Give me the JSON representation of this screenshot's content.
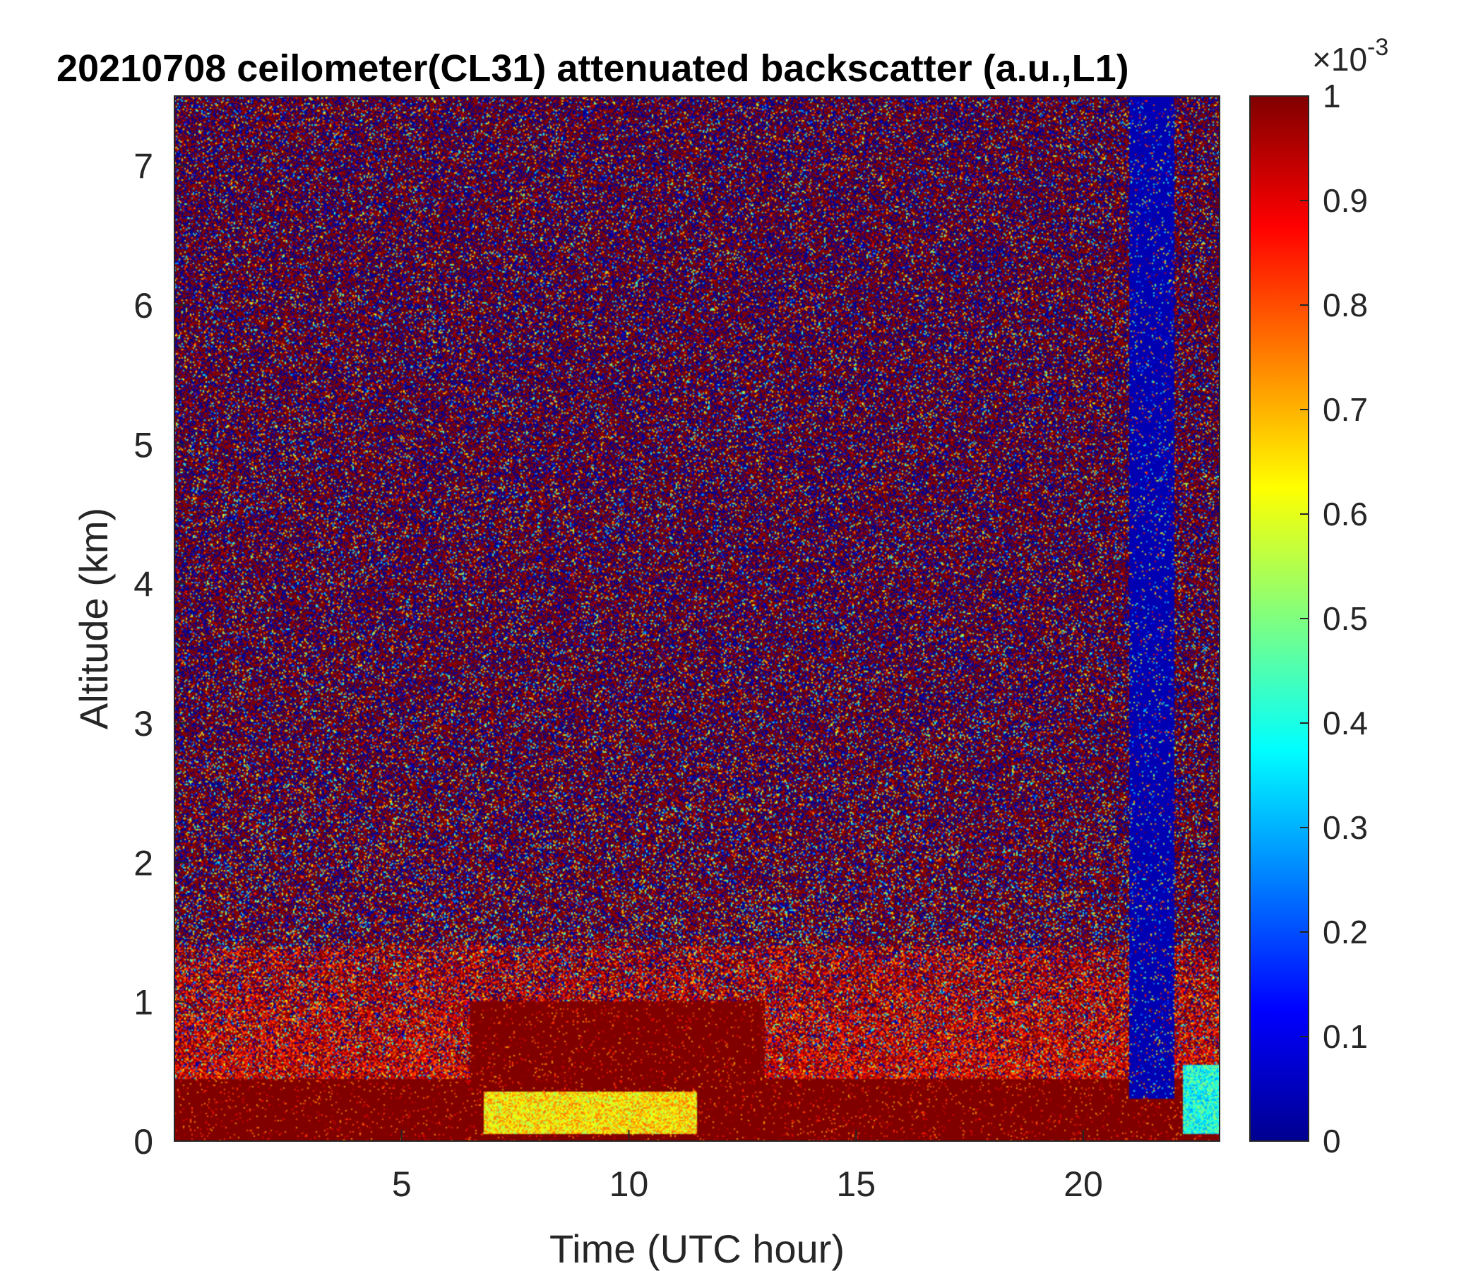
{
  "chart_data": {
    "type": "heatmap",
    "title": "20210708 ceilometer(CL31) attenuated backscatter (a.u.,L1)",
    "xlabel": "Time (UTC hour)",
    "ylabel": "Altitude (km)",
    "xlim": [
      0,
      23
    ],
    "ylim": [
      0,
      7.5
    ],
    "xticks": [
      5,
      10,
      15,
      20
    ],
    "yticks": [
      0,
      1,
      2,
      3,
      4,
      5,
      6,
      7
    ],
    "colormap": "jet",
    "colorbar": {
      "min": 0,
      "max": 1,
      "exponent_label": "×10",
      "exponent_value": "-3",
      "ticks": [
        0,
        0.1,
        0.2,
        0.3,
        0.4,
        0.5,
        0.6,
        0.7,
        0.8,
        0.9,
        1
      ]
    },
    "grid": false,
    "features": [
      {
        "description": "saturated near-surface layer",
        "time": [
          0,
          23
        ],
        "altitude_km": [
          0,
          0.45
        ],
        "value": 1.0
      },
      {
        "description": "elevated aerosol layer",
        "time": [
          6.5,
          13
        ],
        "altitude_km": [
          0.45,
          1.0
        ],
        "value": 0.95
      },
      {
        "description": "bright yellow layer",
        "time": [
          6.8,
          11.5
        ],
        "altitude_km": [
          0.05,
          0.35
        ],
        "value": 0.65
      },
      {
        "description": "cyan low-signal patch",
        "time": [
          22.2,
          23
        ],
        "altitude_km": [
          0.05,
          0.55
        ],
        "value": 0.4
      },
      {
        "description": "low-signal column (cloud/rain attenuation)",
        "time": [
          21,
          22
        ],
        "altitude_km": [
          0.3,
          7.5
        ],
        "value": 0.0
      }
    ]
  }
}
